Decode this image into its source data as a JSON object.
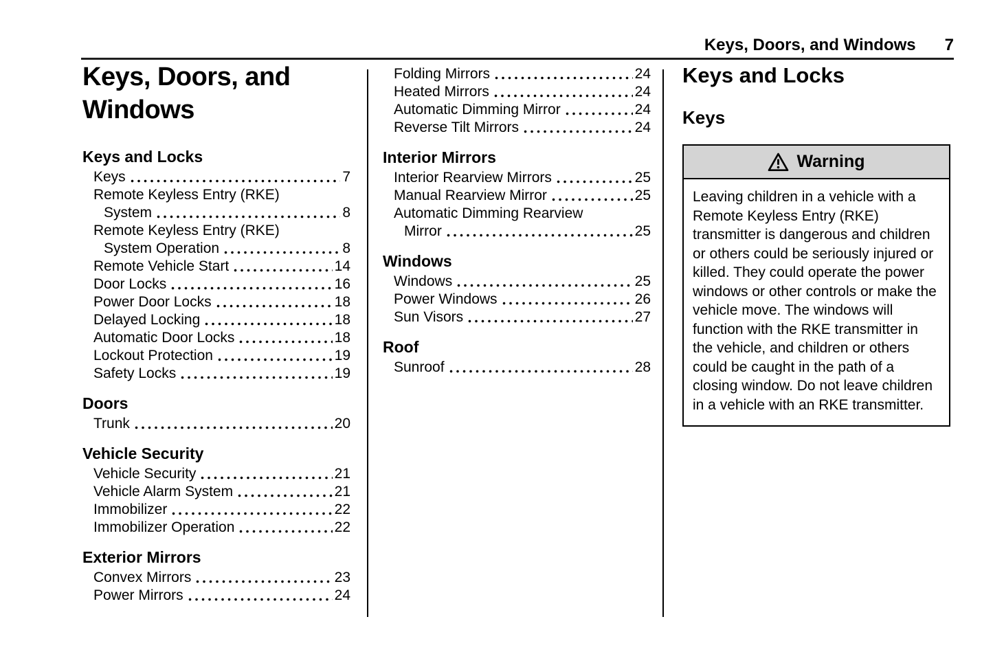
{
  "header": {
    "section_title": "Keys, Doors, and Windows",
    "page_number": "7"
  },
  "toc": {
    "title_line1": "Keys, Doors, and",
    "title_line2": "Windows",
    "column1_rows": [
      {
        "t": "h",
        "text": "Keys and Locks"
      },
      {
        "t": "e",
        "label": "Keys",
        "page": "7"
      },
      {
        "t": "w",
        "text": "Remote Keyless Entry (RKE)"
      },
      {
        "t": "e2",
        "label": "System",
        "page": "8"
      },
      {
        "t": "w",
        "text": "Remote Keyless Entry (RKE)"
      },
      {
        "t": "e2",
        "label": "System Operation",
        "page": "8"
      },
      {
        "t": "e",
        "label": "Remote Vehicle Start",
        "page": "14"
      },
      {
        "t": "e",
        "label": "Door Locks",
        "page": "16"
      },
      {
        "t": "e",
        "label": "Power Door Locks",
        "page": "18"
      },
      {
        "t": "e",
        "label": "Delayed Locking",
        "page": "18"
      },
      {
        "t": "e",
        "label": "Automatic Door Locks",
        "page": "18"
      },
      {
        "t": "e",
        "label": "Lockout Protection",
        "page": "19"
      },
      {
        "t": "e",
        "label": "Safety Locks",
        "page": "19"
      },
      {
        "t": "h",
        "text": "Doors"
      },
      {
        "t": "e",
        "label": "Trunk",
        "page": "20"
      },
      {
        "t": "h",
        "text": "Vehicle Security"
      },
      {
        "t": "e",
        "label": "Vehicle Security",
        "page": "21"
      },
      {
        "t": "e",
        "label": "Vehicle Alarm System",
        "page": "21"
      },
      {
        "t": "e",
        "label": "Immobilizer",
        "page": "22"
      },
      {
        "t": "e",
        "label": "Immobilizer Operation",
        "page": "22"
      },
      {
        "t": "h",
        "text": "Exterior Mirrors"
      },
      {
        "t": "e",
        "label": "Convex Mirrors",
        "page": "23"
      },
      {
        "t": "e",
        "label": "Power Mirrors",
        "page": "24"
      }
    ],
    "column2_rows": [
      {
        "t": "e",
        "label": "Folding Mirrors",
        "page": "24"
      },
      {
        "t": "e",
        "label": "Heated Mirrors",
        "page": "24"
      },
      {
        "t": "e",
        "label": "Automatic Dimming Mirror",
        "page": "24"
      },
      {
        "t": "e",
        "label": "Reverse Tilt Mirrors",
        "page": "24"
      },
      {
        "t": "h",
        "text": "Interior Mirrors"
      },
      {
        "t": "e",
        "label": "Interior Rearview Mirrors",
        "page": "25"
      },
      {
        "t": "e",
        "label": "Manual Rearview Mirror",
        "page": "25"
      },
      {
        "t": "w",
        "text": "Automatic Dimming Rearview"
      },
      {
        "t": "e2",
        "label": "Mirror",
        "page": "25"
      },
      {
        "t": "h",
        "text": "Windows"
      },
      {
        "t": "e",
        "label": "Windows",
        "page": "25"
      },
      {
        "t": "e",
        "label": "Power Windows",
        "page": "26"
      },
      {
        "t": "e",
        "label": "Sun Visors",
        "page": "27"
      },
      {
        "t": "h",
        "text": "Roof"
      },
      {
        "t": "e",
        "label": "Sunroof",
        "page": "28"
      }
    ]
  },
  "content": {
    "heading": "Keys and Locks",
    "subheading": "Keys",
    "warning": {
      "icon": "warning-triangle-icon",
      "title": "Warning",
      "body": "Leaving children in a vehicle with a Remote Keyless Entry (RKE) transmitter is dangerous and children or others could be seriously injured or killed. They could operate the power windows or other controls or make the vehicle move. The windows will function with the RKE transmitter in the vehicle, and children or others could be caught in the path of a closing window. Do not leave children in a vehicle with an RKE transmitter."
    }
  },
  "colors": {
    "text": "#000000",
    "rule": "#1f1f1f",
    "warning_header_bg": "#d4d4d4"
  }
}
